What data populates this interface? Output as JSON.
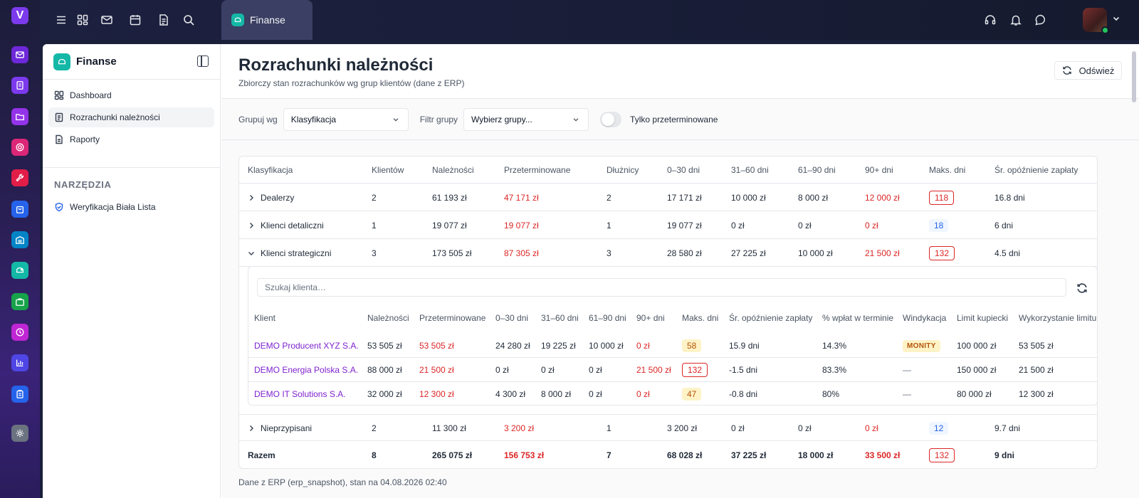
{
  "rail": {
    "logo": "V"
  },
  "topbar": {
    "tab_label": "Finanse"
  },
  "sidebar": {
    "title": "Finanse",
    "items": [
      {
        "label": "Dashboard",
        "icon": "dashboard-icon"
      },
      {
        "label": "Rozrachunki należności",
        "icon": "document-icon"
      },
      {
        "label": "Raporty",
        "icon": "report-icon"
      }
    ],
    "section_title": "NARZĘDZIA",
    "tools": [
      {
        "label": "Weryfikacja Biała Lista",
        "icon": "shield-check-icon"
      }
    ]
  },
  "page": {
    "title": "Rozrachunki należności",
    "subtitle": "Zbiorczy stan rozrachunków wg grup klientów (dane z ERP)",
    "refresh_label": "Odśwież"
  },
  "filters": {
    "group_by_label": "Grupuj wg",
    "group_by_value": "Klasyfikacja",
    "group_filter_label": "Filtr grupy",
    "group_filter_value": "Wybierz grupy...",
    "overdue_only_label": "Tylko przeterminowane"
  },
  "table": {
    "headers": [
      "Klasyfikacja",
      "Klientów",
      "Należności",
      "Przeterminowane",
      "Dłużnicy",
      "0–30 dni",
      "31–60 dni",
      "61–90 dni",
      "90+ dni",
      "Maks. dni",
      "Śr. opóźnienie zapłaty"
    ],
    "rows": [
      {
        "name": "Dealerzy",
        "clients": "2",
        "receivables": "61 193 zł",
        "overdue": "47 171 zł",
        "debtors": "2",
        "d0_30": "17 171 zł",
        "d31_60": "10 000 zł",
        "d61_90": "8 000 zł",
        "d90": "12 000 zł",
        "max_days": "118",
        "avg_delay": "16.8 dni"
      },
      {
        "name": "Klienci detaliczni",
        "clients": "1",
        "receivables": "19 077 zł",
        "overdue": "19 077 zł",
        "debtors": "1",
        "d0_30": "19 077 zł",
        "d31_60": "0 zł",
        "d61_90": "0 zł",
        "d90": "0 zł",
        "max_days": "18",
        "avg_delay": "6 dni"
      },
      {
        "name": "Klienci strategiczni",
        "clients": "3",
        "receivables": "173 505 zł",
        "overdue": "87 305 zł",
        "debtors": "3",
        "d0_30": "28 580 zł",
        "d31_60": "27 225 zł",
        "d61_90": "10 000 zł",
        "d90": "21 500 zł",
        "max_days": "132",
        "avg_delay": "4.5 dni"
      },
      {
        "name": "Nieprzypisani",
        "clients": "2",
        "receivables": "11 300 zł",
        "overdue": "3 200 zł",
        "debtors": "1",
        "d0_30": "3 200 zł",
        "d31_60": "0 zł",
        "d61_90": "0 zł",
        "d90": "0 zł",
        "max_days": "12",
        "avg_delay": "9.7 dni"
      }
    ],
    "total": {
      "name": "Razem",
      "clients": "8",
      "receivables": "265 075 zł",
      "overdue": "156 753 zł",
      "debtors": "7",
      "d0_30": "68 028 zł",
      "d31_60": "37 225 zł",
      "d61_90": "18 000 zł",
      "d90": "33 500 zł",
      "max_days": "132",
      "avg_delay": "9 dni"
    }
  },
  "subtable": {
    "search_placeholder": "Szukaj klienta…",
    "headers": [
      "Klient",
      "Należności",
      "Przeterminowane",
      "0–30 dni",
      "31–60 dni",
      "61–90 dni",
      "90+ dni",
      "Maks. dni",
      "Śr. opóźnienie zapłaty",
      "% wpłat w terminie",
      "Windykacja",
      "Limit kupiecki",
      "Wykorzystanie limitu"
    ],
    "rows": [
      {
        "client": "DEMO Producent XYZ S.A.",
        "receivables": "53 505 zł",
        "overdue": "53 505 zł",
        "d0_30": "24 280 zł",
        "d31_60": "19 225 zł",
        "d61_90": "10 000 zł",
        "d90": "0 zł",
        "max_days": "58",
        "avg_delay": "15.9 dni",
        "on_time": "14.3%",
        "collection": "MONITY",
        "limit": "100 000 zł",
        "usage": "53 505 zł"
      },
      {
        "client": "DEMO Energia Polska S.A.",
        "receivables": "88 000 zł",
        "overdue": "21 500 zł",
        "d0_30": "0 zł",
        "d31_60": "0 zł",
        "d61_90": "0 zł",
        "d90": "21 500 zł",
        "max_days": "132",
        "avg_delay": "-1.5 dni",
        "on_time": "83.3%",
        "collection": "—",
        "limit": "150 000 zł",
        "usage": "21 500 zł"
      },
      {
        "client": "DEMO IT Solutions S.A.",
        "receivables": "32 000 zł",
        "overdue": "12 300 zł",
        "d0_30": "4 300 zł",
        "d31_60": "8 000 zł",
        "d61_90": "0 zł",
        "d90": "0 zł",
        "max_days": "47",
        "avg_delay": "-0.8 dni",
        "on_time": "80%",
        "collection": "—",
        "limit": "80 000 zł",
        "usage": "12 300 zł"
      }
    ]
  },
  "footnote": "Dane z ERP (erp_snapshot), stan na 04.08.2026 02:40"
}
